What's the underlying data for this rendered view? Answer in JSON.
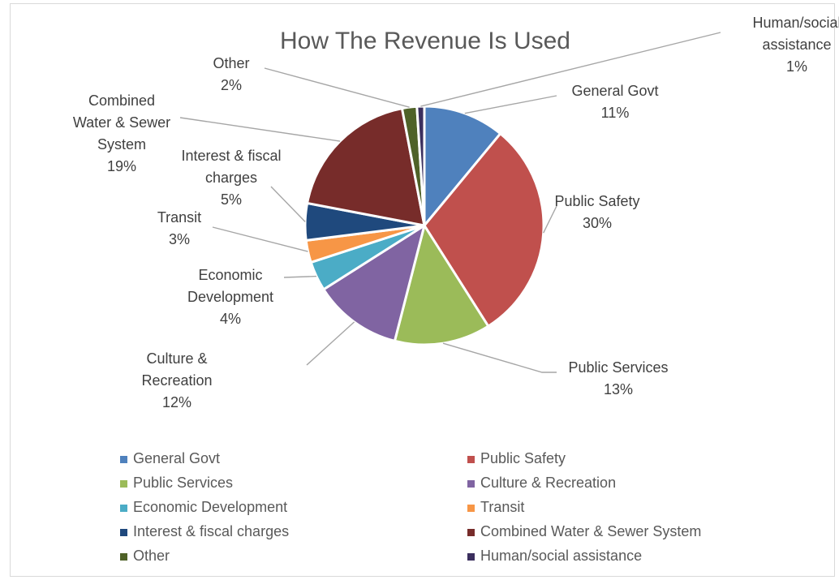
{
  "chart_data": {
    "type": "pie",
    "title": "How The Revenue Is Used",
    "categories": [
      "General Govt",
      "Public Safety",
      "Public Services",
      "Culture & Recreation",
      "Economic Development",
      "Transit",
      "Interest & fiscal charges",
      "Combined Water & Sewer System",
      "Other",
      "Human/social assistance"
    ],
    "values": [
      11,
      30,
      13,
      12,
      4,
      3,
      5,
      19,
      2,
      1
    ],
    "data_labels": [
      {
        "lines": [
          "General Govt"
        ],
        "pct": "11%"
      },
      {
        "lines": [
          "Public Safety"
        ],
        "pct": "30%"
      },
      {
        "lines": [
          "Public Services"
        ],
        "pct": "13%"
      },
      {
        "lines": [
          "Culture &",
          "Recreation"
        ],
        "pct": "12%"
      },
      {
        "lines": [
          "Economic",
          "Development"
        ],
        "pct": "4%"
      },
      {
        "lines": [
          "Transit"
        ],
        "pct": "3%"
      },
      {
        "lines": [
          "Interest & fiscal",
          "charges"
        ],
        "pct": "5%"
      },
      {
        "lines": [
          "Combined",
          "Water & Sewer",
          "System"
        ],
        "pct": "19%"
      },
      {
        "lines": [
          "Other"
        ],
        "pct": "2%"
      },
      {
        "lines": [
          "Human/social",
          "assistance"
        ],
        "pct": "1%"
      }
    ],
    "colors": [
      "#4f81bd",
      "#c0504d",
      "#9bbb59",
      "#8064a2",
      "#4bacc6",
      "#f79646",
      "#1f497d",
      "#772c2a",
      "#4f6228",
      "#3b2f5e"
    ],
    "legend": "bottom",
    "unit": "%"
  }
}
